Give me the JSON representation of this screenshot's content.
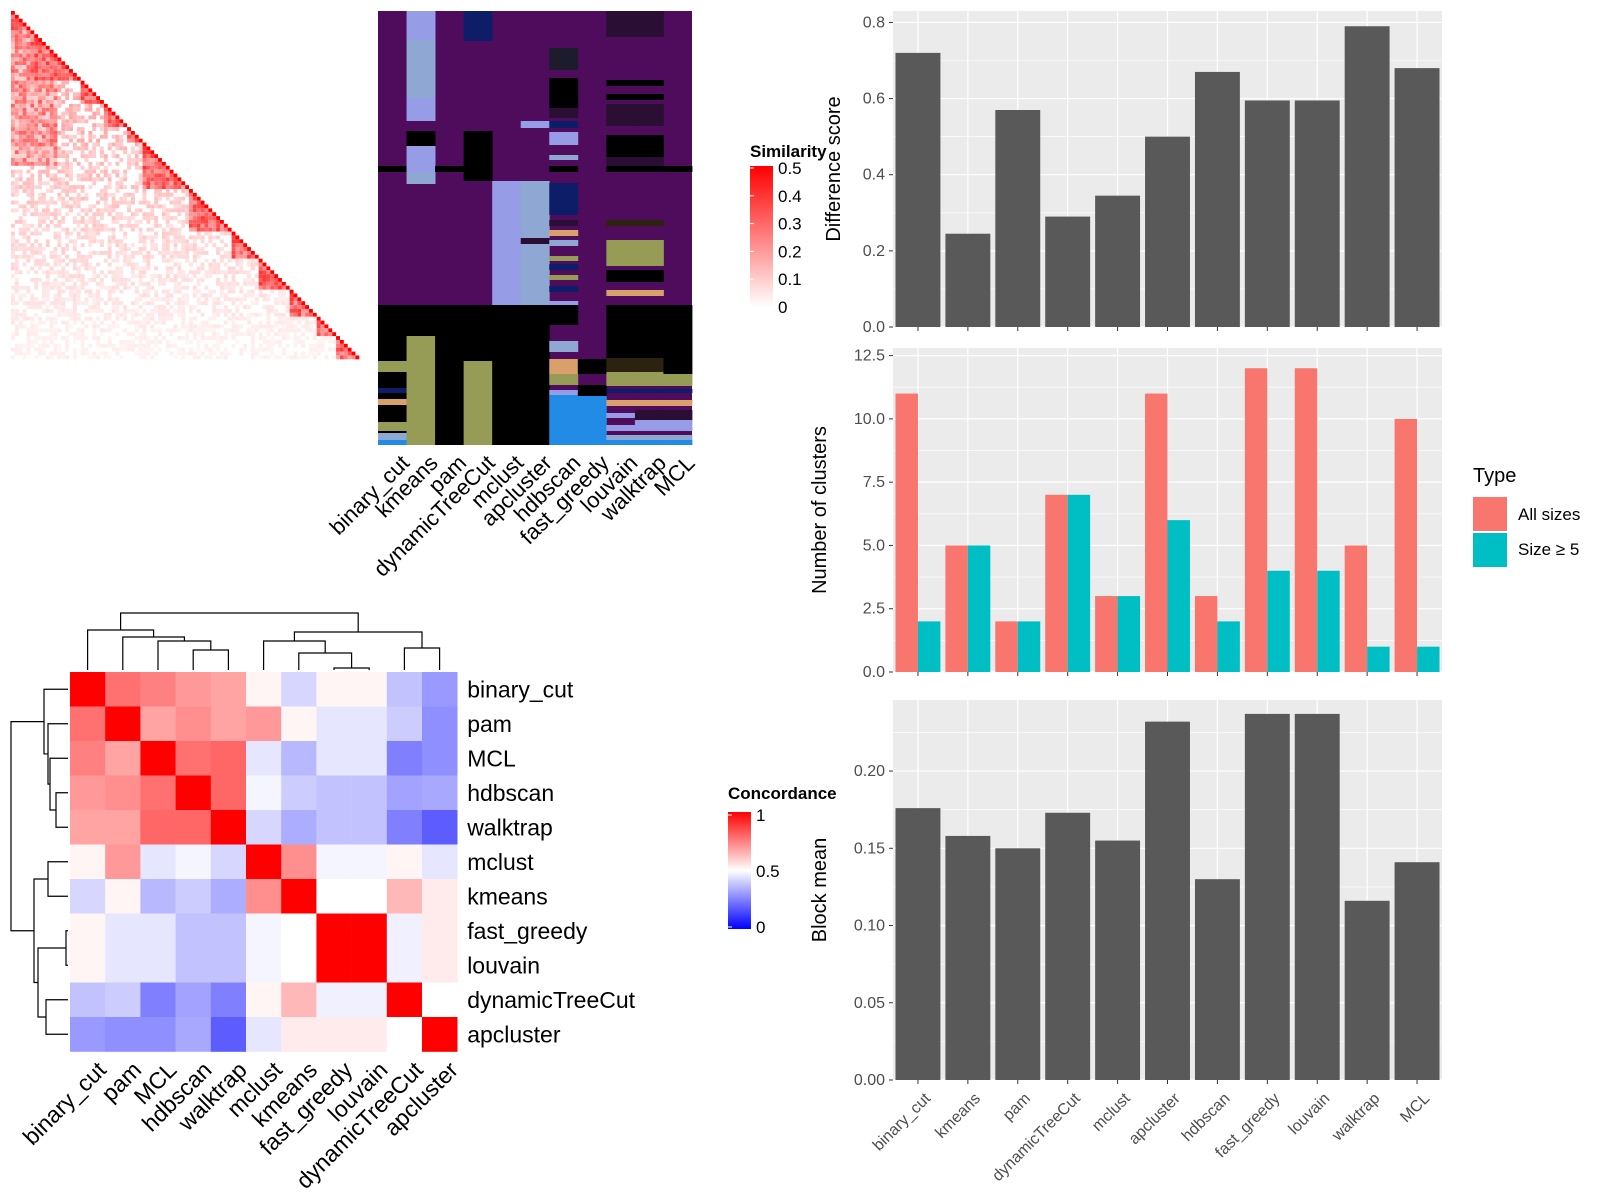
{
  "methods": [
    "binary_cut",
    "kmeans",
    "pam",
    "dynamicTreeCut",
    "mclust",
    "apcluster",
    "hdbscan",
    "fast_greedy",
    "louvain",
    "walktrap",
    "MCL"
  ],
  "chart_data": [
    {
      "type": "heatmap",
      "name": "similarity_matrix",
      "legend_title": "Similarity",
      "legend_ticks": [
        "0",
        "0.1",
        "0.2",
        "0.3",
        "0.4",
        "0.5"
      ],
      "n": 90,
      "note": "lower-triangular similarity matrix of ~90 terms, diagonal = max"
    },
    {
      "type": "heatmap",
      "name": "cluster_assignment",
      "columns": [
        "binary_cut",
        "kmeans",
        "pam",
        "dynamicTreeCut",
        "mclust",
        "apcluster",
        "hdbscan",
        "fast_greedy",
        "louvain",
        "walktrap",
        "MCL"
      ]
    },
    {
      "type": "heatmap",
      "name": "concordance",
      "legend_title": "Concordance",
      "legend_ticks": [
        "0",
        "0.5",
        "1"
      ],
      "row_labels": [
        "binary_cut",
        "pam",
        "MCL",
        "hdbscan",
        "walktrap",
        "mclust",
        "kmeans",
        "fast_greedy",
        "louvain",
        "dynamicTreeCut",
        "apcluster"
      ],
      "col_labels": [
        "binary_cut",
        "pam",
        "MCL",
        "hdbscan",
        "walktrap",
        "mclust",
        "kmeans",
        "fast_greedy",
        "louvain",
        "dynamicTreeCut",
        "apcluster"
      ],
      "values": [
        [
          1.0,
          0.78,
          0.75,
          0.7,
          0.68,
          0.52,
          0.42,
          0.52,
          0.52,
          0.38,
          0.3
        ],
        [
          0.78,
          1.0,
          0.68,
          0.72,
          0.68,
          0.7,
          0.52,
          0.45,
          0.45,
          0.4,
          0.28
        ],
        [
          0.75,
          0.68,
          1.0,
          0.78,
          0.8,
          0.45,
          0.36,
          0.45,
          0.45,
          0.25,
          0.28
        ],
        [
          0.7,
          0.72,
          0.78,
          1.0,
          0.8,
          0.48,
          0.4,
          0.38,
          0.38,
          0.32,
          0.33
        ],
        [
          0.68,
          0.68,
          0.8,
          0.8,
          1.0,
          0.42,
          0.34,
          0.38,
          0.38,
          0.25,
          0.18
        ],
        [
          0.52,
          0.7,
          0.45,
          0.48,
          0.42,
          1.0,
          0.72,
          0.48,
          0.48,
          0.52,
          0.45
        ],
        [
          0.42,
          0.52,
          0.36,
          0.4,
          0.34,
          0.72,
          1.0,
          0.5,
          0.5,
          0.64,
          0.54
        ],
        [
          0.52,
          0.45,
          0.45,
          0.38,
          0.38,
          0.48,
          0.5,
          1.0,
          1.0,
          0.47,
          0.54
        ],
        [
          0.52,
          0.45,
          0.45,
          0.38,
          0.38,
          0.48,
          0.5,
          1.0,
          1.0,
          0.47,
          0.54
        ],
        [
          0.38,
          0.4,
          0.25,
          0.32,
          0.25,
          0.52,
          0.64,
          0.47,
          0.47,
          1.0,
          0.5
        ],
        [
          0.3,
          0.28,
          0.28,
          0.33,
          0.18,
          0.45,
          0.54,
          0.54,
          0.54,
          0.5,
          1.0
        ]
      ]
    },
    {
      "type": "bar",
      "name": "difference_score",
      "categories": [
        "binary_cut",
        "kmeans",
        "pam",
        "dynamicTreeCut",
        "mclust",
        "apcluster",
        "hdbscan",
        "fast_greedy",
        "louvain",
        "walktrap",
        "MCL"
      ],
      "values": [
        0.72,
        0.245,
        0.57,
        0.29,
        0.345,
        0.5,
        0.67,
        0.595,
        0.595,
        0.79,
        0.68
      ],
      "ylabel": "Difference score",
      "ylim": [
        0,
        0.83
      ],
      "yticks": [
        0.0,
        0.2,
        0.4,
        0.6,
        0.8
      ]
    },
    {
      "type": "bar",
      "name": "number_of_clusters",
      "categories": [
        "binary_cut",
        "kmeans",
        "pam",
        "dynamicTreeCut",
        "mclust",
        "apcluster",
        "hdbscan",
        "fast_greedy",
        "louvain",
        "walktrap",
        "MCL"
      ],
      "series": [
        {
          "name": "All sizes",
          "color": "#F8766D",
          "values": [
            11,
            5,
            2,
            7,
            3,
            11,
            3,
            12,
            12,
            5,
            10
          ]
        },
        {
          "name": "Size ≥ 5",
          "color": "#00BFC4",
          "values": [
            2,
            5,
            2,
            7,
            3,
            6,
            2,
            4,
            4,
            1,
            1
          ]
        }
      ],
      "ylabel": "Number of clusters",
      "ylim": [
        0,
        12.8
      ],
      "yticks": [
        0.0,
        2.5,
        5.0,
        7.5,
        10.0,
        12.5
      ],
      "legend": {
        "title": "Type",
        "placement": "right"
      }
    },
    {
      "type": "bar",
      "name": "block_mean",
      "categories": [
        "binary_cut",
        "kmeans",
        "pam",
        "dynamicTreeCut",
        "mclust",
        "apcluster",
        "hdbscan",
        "fast_greedy",
        "louvain",
        "walktrap",
        "MCL"
      ],
      "values": [
        0.176,
        0.158,
        0.15,
        0.173,
        0.155,
        0.232,
        0.13,
        0.237,
        0.237,
        0.116,
        0.141
      ],
      "ylabel": "Block mean",
      "ylim": [
        0,
        0.246
      ],
      "yticks": [
        0.0,
        0.05,
        0.1,
        0.15,
        0.2
      ]
    }
  ],
  "colors": {
    "panel_bg": "#EBEBEB",
    "grid": "#FFFFFF",
    "bar": "#595959",
    "all_sizes": "#F8766D",
    "size_ge_5": "#00BFC4",
    "assign_bg": "#500C5C"
  }
}
